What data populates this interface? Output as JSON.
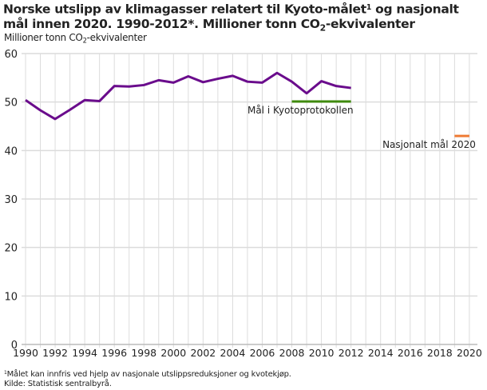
{
  "title_parts": [
    "Norske utslipp av klimagasser relatert til Kyoto-målet",
    "1",
    " og nasjonalt mål innen 2020. 1990-2012*. Millioner tonn CO",
    "2",
    "-ekvivalenter"
  ],
  "chart_data": {
    "type": "line",
    "ylabel_parts": [
      "Millioner tonn CO",
      "2",
      "-ekvivalenter"
    ],
    "xlabel": "",
    "xlim": [
      1990,
      2020
    ],
    "ylim": [
      0,
      60
    ],
    "x_ticks": [
      1990,
      1992,
      1994,
      1996,
      1998,
      2000,
      2002,
      2004,
      2006,
      2008,
      2010,
      2012,
      2014,
      2016,
      2018,
      2020
    ],
    "y_ticks": [
      0,
      10,
      20,
      30,
      40,
      50,
      60
    ],
    "grid": true,
    "series": [
      {
        "color": "#6a0c8c",
        "x": [
          1990,
          1991,
          1992,
          1993,
          1994,
          1995,
          1996,
          1997,
          1998,
          1999,
          2000,
          2001,
          2002,
          2003,
          2004,
          2005,
          2006,
          2007,
          2008,
          2009,
          2010,
          2011,
          2012
        ],
        "values": [
          50.4,
          48.3,
          46.5,
          48.4,
          50.4,
          50.2,
          53.3,
          53.2,
          53.5,
          54.5,
          54.0,
          55.3,
          54.1,
          54.8,
          55.4,
          54.2,
          54.0,
          56.0,
          54.2,
          51.8,
          54.3,
          53.3,
          52.9
        ]
      },
      {
        "name": "Mål i Kyotoprotokollen",
        "color": "#3f8a0e",
        "x": [
          2008,
          2012
        ],
        "values": [
          50.1,
          50.1
        ]
      },
      {
        "name": "Nasjonalt mål 2020",
        "color": "#ef7b34",
        "x": [
          2019,
          2020
        ],
        "values": [
          43.0,
          43.0
        ]
      }
    ]
  },
  "footnote": "Målet kan innfris ved hjelp av nasjonale utslippsreduksjoner og kvotekjøp.",
  "footnote_marker": "1",
  "source": "Kilde: Statistisk sentralbyrå."
}
